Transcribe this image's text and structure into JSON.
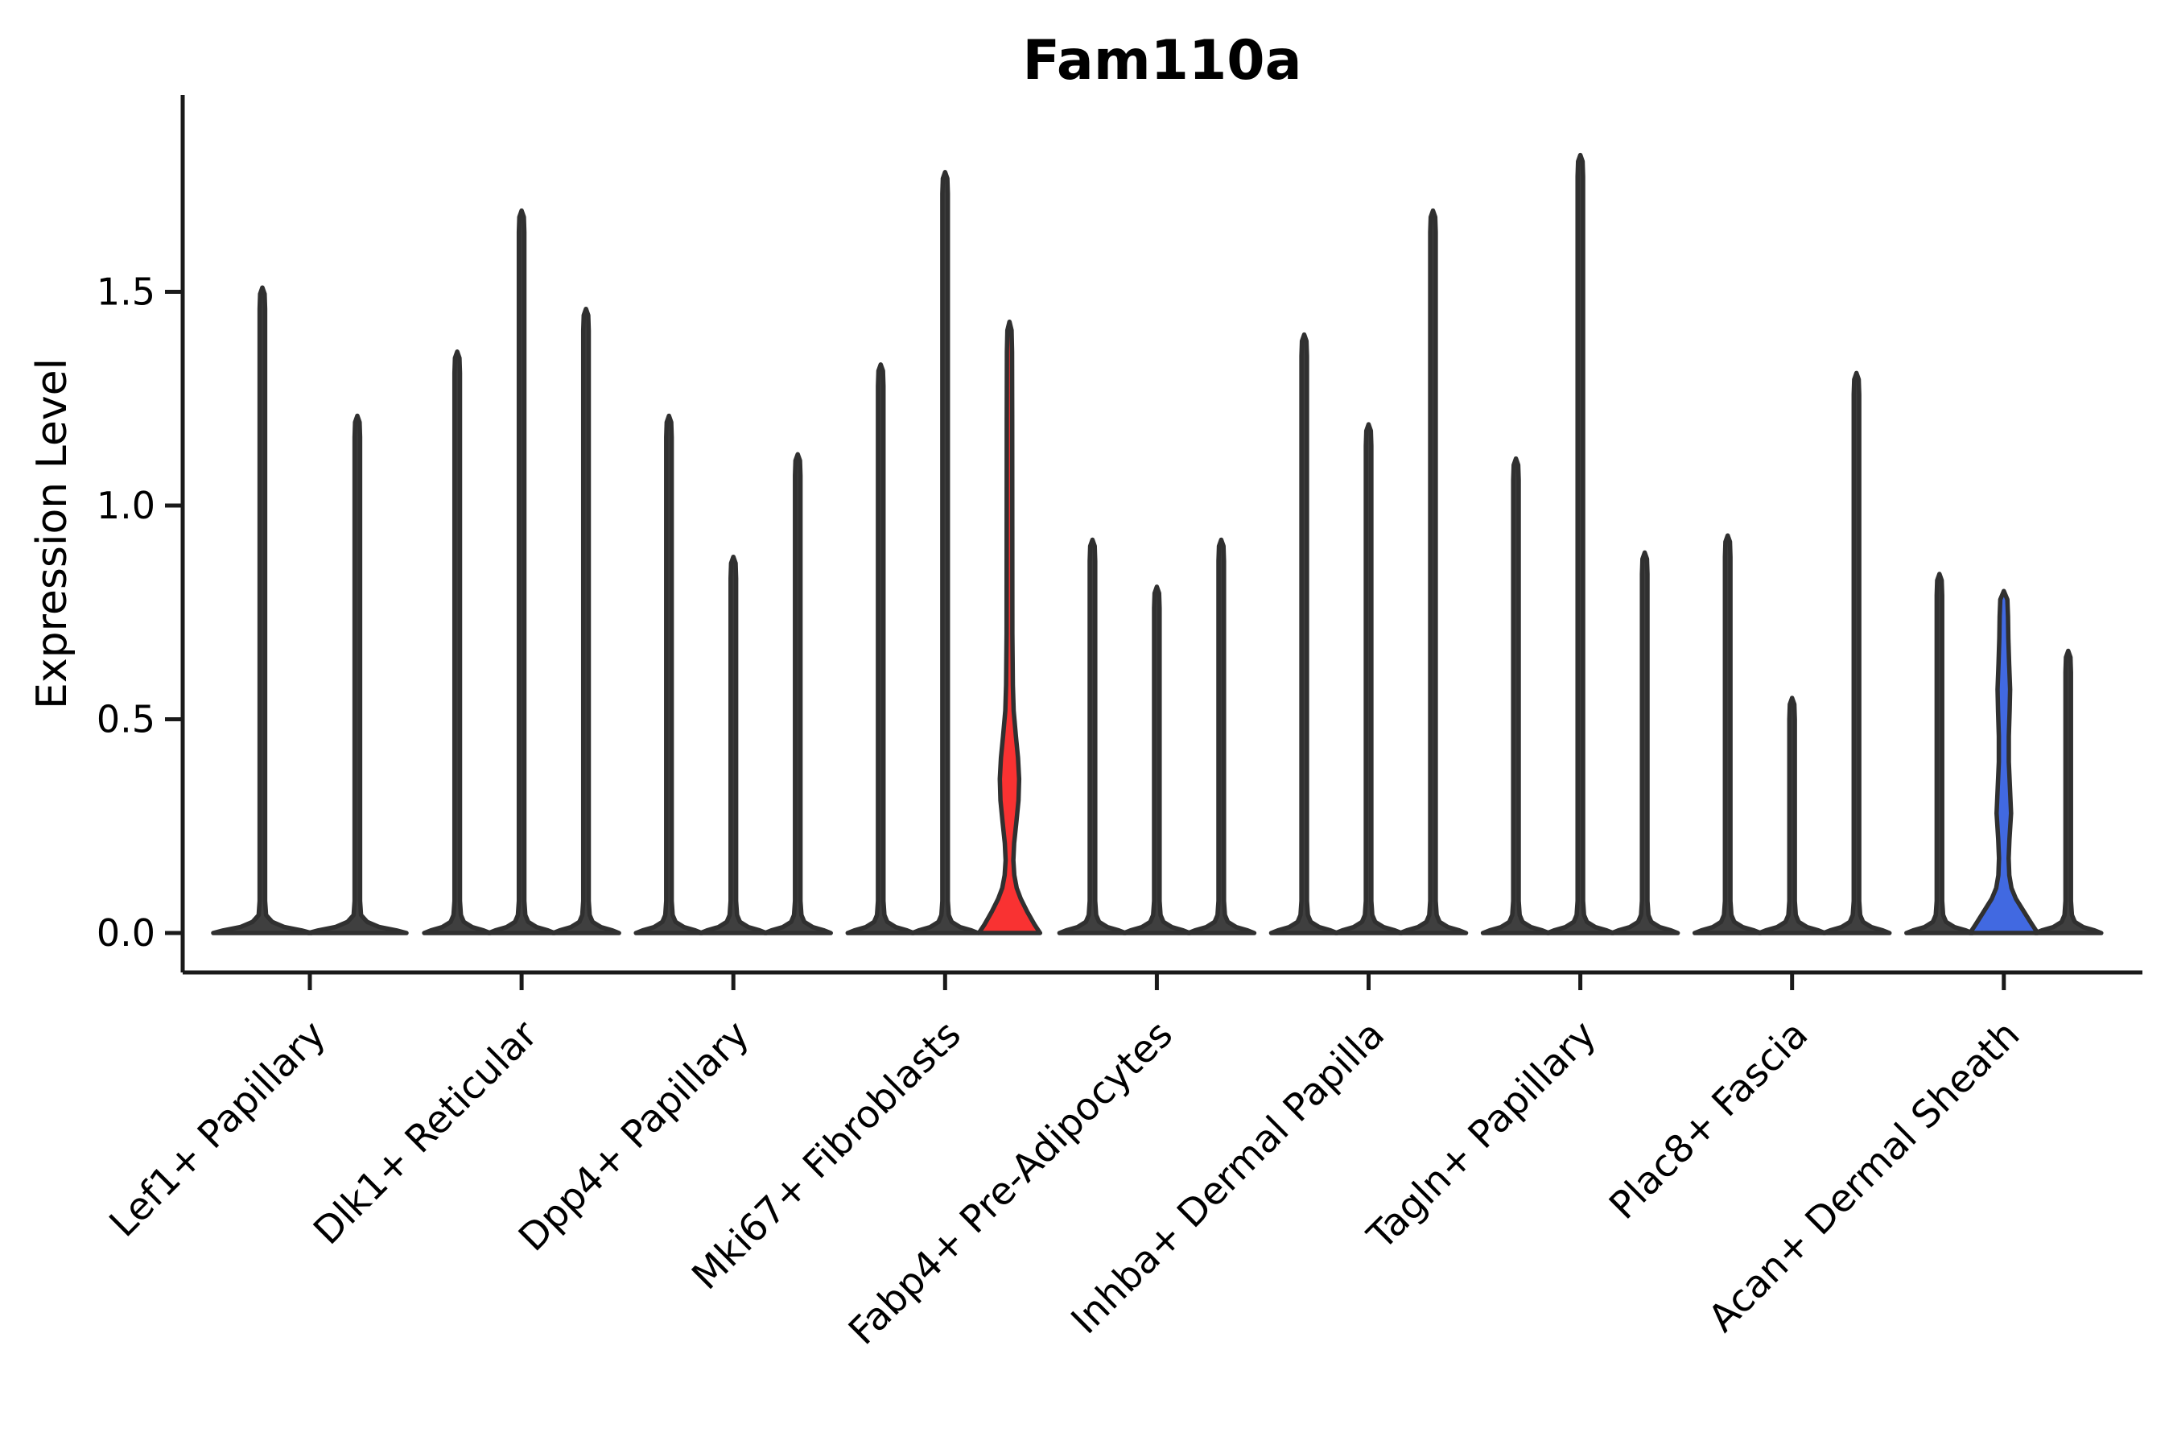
{
  "chart_data": {
    "type": "violin",
    "title": "Fam110a",
    "ylabel": "Expression Level",
    "xlabel": "",
    "grid": false,
    "legend": "none",
    "ylim": [
      -0.09,
      1.96
    ],
    "yticks": [
      {
        "value": 0.0,
        "label": "0.0"
      },
      {
        "value": 0.5,
        "label": "0.5"
      },
      {
        "value": 1.0,
        "label": "1.0"
      },
      {
        "value": 1.5,
        "label": "1.5"
      }
    ],
    "categories": [
      "Lef1+ Papillary",
      "Dlk1+ Reticular",
      "Dpp4+ Papillary",
      "Mki67+ Fibroblasts",
      "Fabp4+ Pre-Adipocytes",
      "Inhba+ Dermal Papilla",
      "Tagln+ Papillary",
      "Plac8+ Fascia",
      "Acan+ Dermal Sheath"
    ],
    "groups": [
      {
        "category": "Lef1+ Papillary",
        "violins": [
          {
            "max": 1.51,
            "style": "spike"
          },
          {
            "max": 1.21,
            "style": "spike"
          }
        ]
      },
      {
        "category": "Dlk1+ Reticular",
        "violins": [
          {
            "max": 1.36,
            "style": "spike"
          },
          {
            "max": 1.69,
            "style": "spike"
          },
          {
            "max": 1.46,
            "style": "spike"
          }
        ]
      },
      {
        "category": "Dpp4+ Papillary",
        "violins": [
          {
            "max": 1.21,
            "style": "spike"
          },
          {
            "max": 0.88,
            "style": "spike"
          },
          {
            "max": 1.12,
            "style": "spike"
          }
        ]
      },
      {
        "category": "Mki67+ Fibroblasts",
        "violins": [
          {
            "max": 1.33,
            "style": "spike"
          },
          {
            "max": 1.78,
            "style": "spike"
          },
          {
            "max": 1.43,
            "style": "highlight-red"
          }
        ]
      },
      {
        "category": "Fabp4+ Pre-Adipocytes",
        "violins": [
          {
            "max": 0.92,
            "style": "spike"
          },
          {
            "max": 0.81,
            "style": "spike"
          },
          {
            "max": 0.92,
            "style": "spike"
          }
        ]
      },
      {
        "category": "Inhba+ Dermal Papilla",
        "violins": [
          {
            "max": 1.4,
            "style": "spike"
          },
          {
            "max": 1.19,
            "style": "spike"
          },
          {
            "max": 1.69,
            "style": "spike"
          }
        ]
      },
      {
        "category": "Tagln+ Papillary",
        "violins": [
          {
            "max": 1.11,
            "style": "spike"
          },
          {
            "max": 1.82,
            "style": "spike"
          },
          {
            "max": 0.89,
            "style": "spike"
          }
        ]
      },
      {
        "category": "Plac8+ Fascia",
        "violins": [
          {
            "max": 0.93,
            "style": "spike"
          },
          {
            "max": 0.55,
            "style": "spike"
          },
          {
            "max": 1.31,
            "style": "spike"
          }
        ]
      },
      {
        "category": "Acan+ Dermal Sheath",
        "violins": [
          {
            "max": 0.84,
            "style": "spike"
          },
          {
            "max": 0.8,
            "style": "highlight-blue"
          },
          {
            "max": 0.66,
            "style": "spike"
          }
        ]
      }
    ],
    "highlight_profiles": {
      "highlight-red": [
        [
          0,
          38
        ],
        [
          0.02,
          31
        ],
        [
          0.05,
          22
        ],
        [
          0.08,
          14
        ],
        [
          0.105,
          9
        ],
        [
          0.135,
          6
        ],
        [
          0.17,
          4.8
        ],
        [
          0.21,
          5.8
        ],
        [
          0.26,
          8.6
        ],
        [
          0.31,
          11.2
        ],
        [
          0.36,
          12
        ],
        [
          0.41,
          10.6
        ],
        [
          0.46,
          8
        ],
        [
          0.52,
          5.2
        ],
        [
          0.58,
          4.2
        ],
        [
          0.7,
          3.6
        ],
        [
          0.95,
          3.5
        ],
        [
          1.2,
          3.4
        ],
        [
          1.36,
          3.2
        ],
        [
          1.41,
          2.6
        ],
        [
          1.43,
          0
        ]
      ],
      "highlight-blue": [
        [
          0,
          42
        ],
        [
          0.02,
          35
        ],
        [
          0.05,
          25
        ],
        [
          0.08,
          15
        ],
        [
          0.105,
          9.5
        ],
        [
          0.135,
          6.8
        ],
        [
          0.175,
          6.0
        ],
        [
          0.22,
          7.0
        ],
        [
          0.28,
          9.0
        ],
        [
          0.34,
          7.6
        ],
        [
          0.4,
          6.2
        ],
        [
          0.46,
          6.2
        ],
        [
          0.52,
          7.2
        ],
        [
          0.57,
          7.8
        ],
        [
          0.63,
          6.6
        ],
        [
          0.69,
          5.6
        ],
        [
          0.74,
          5.2
        ],
        [
          0.78,
          4.4
        ],
        [
          0.8,
          0
        ]
      ]
    },
    "colors": {
      "outline": "#303030",
      "spike_fill": "#3f3f3f",
      "red": "#f93232",
      "blue": "#4169e1",
      "axis": "#1a1a1a",
      "text": "#000000",
      "background": "#ffffff"
    }
  }
}
